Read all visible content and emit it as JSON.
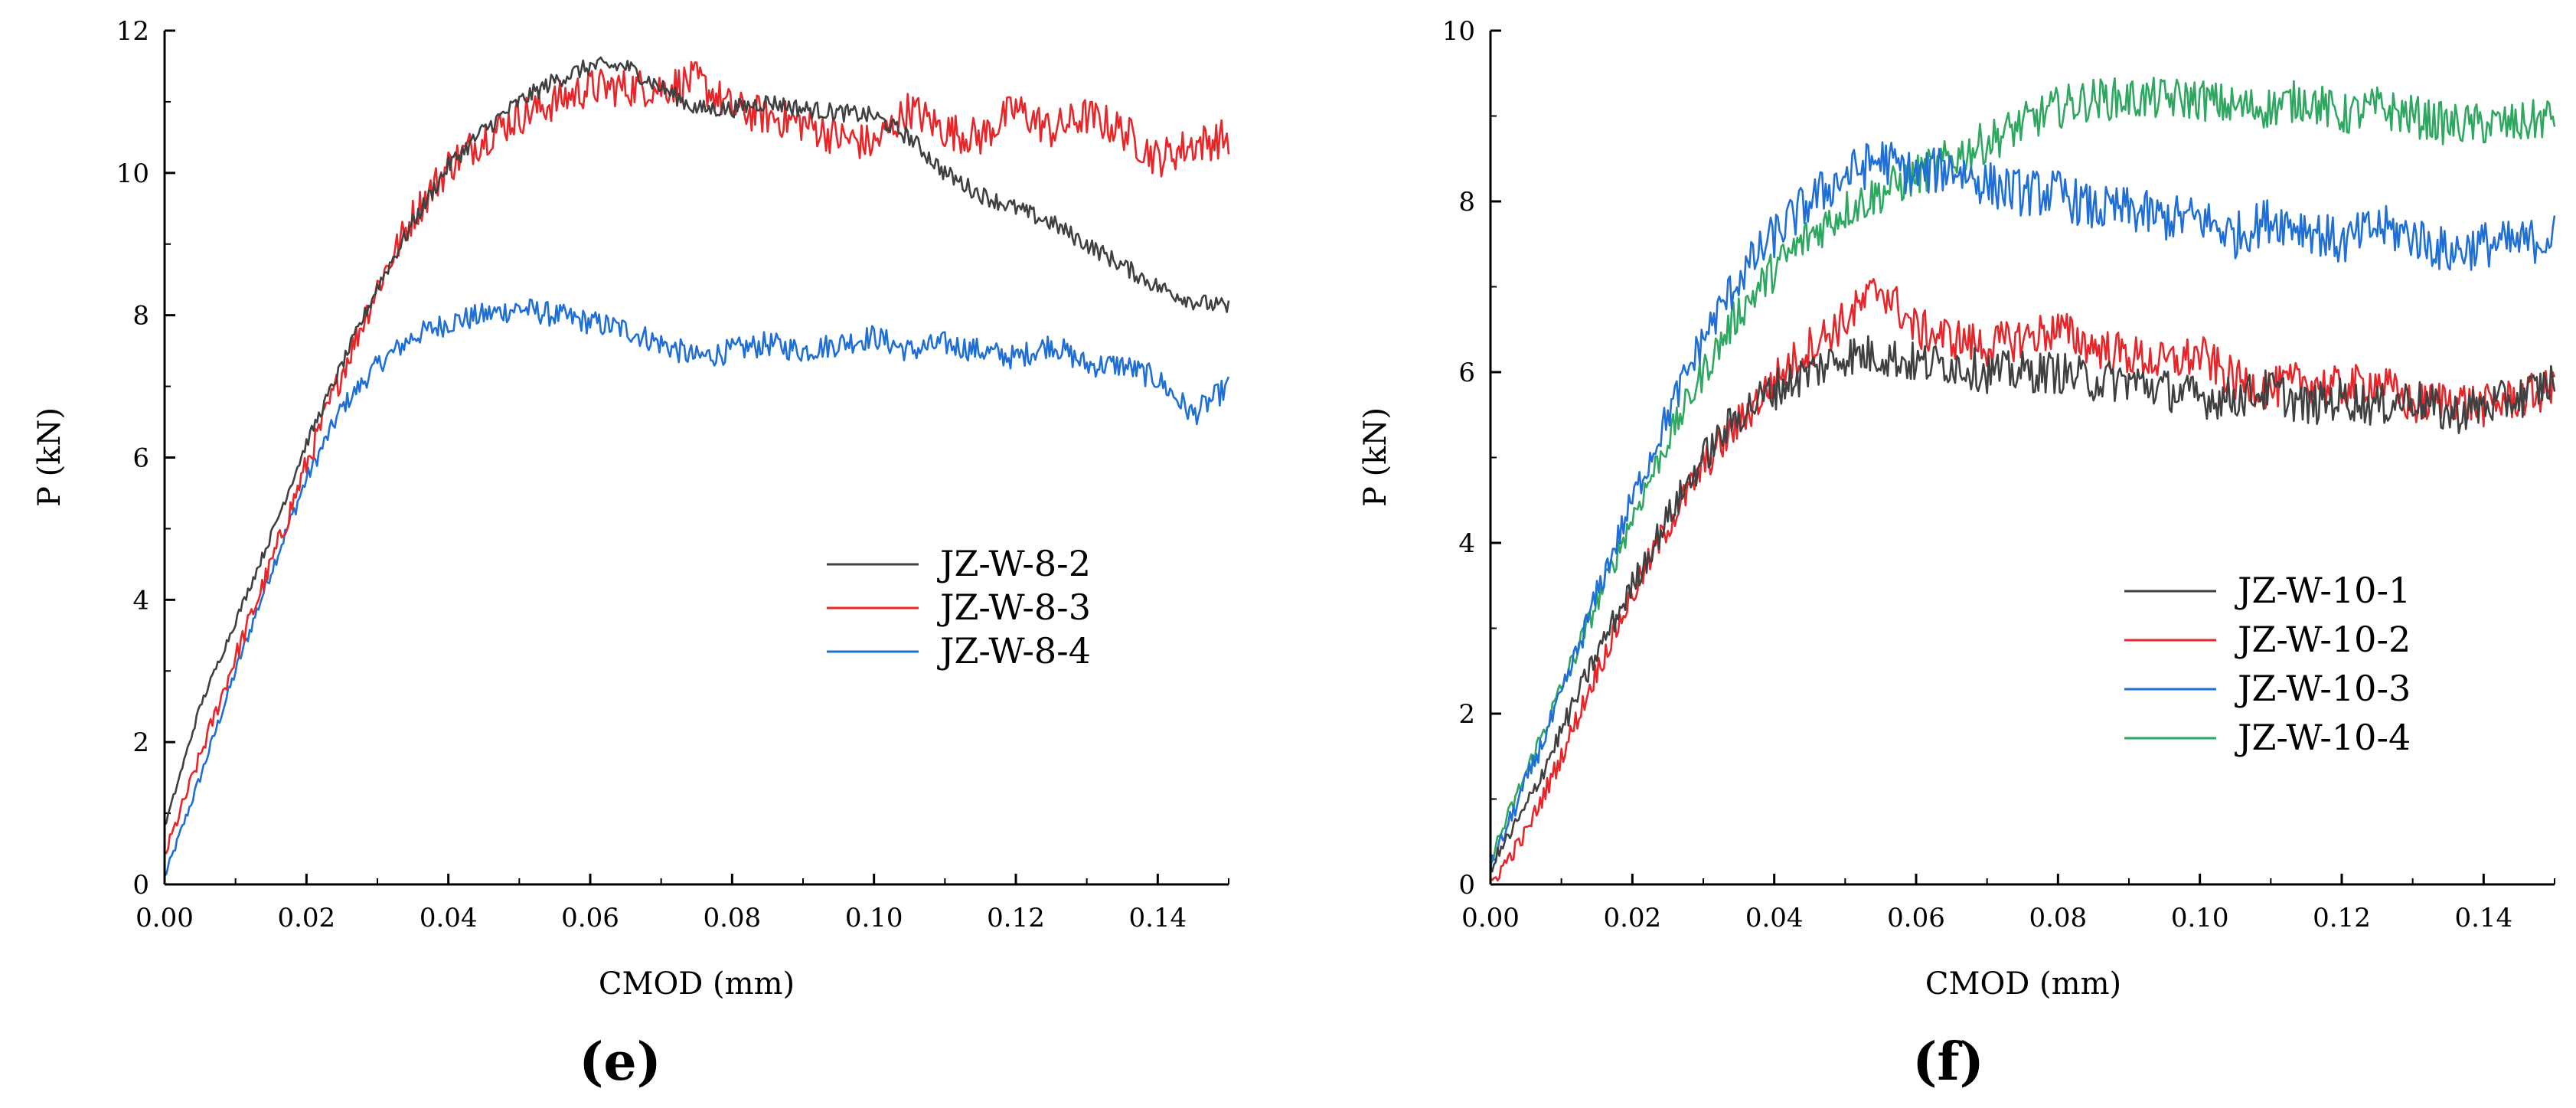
{
  "chart_data": [
    {
      "type": "line",
      "panel": "(e)",
      "title": "",
      "xlabel": "CMOD (mm)",
      "ylabel": "P (kN)",
      "xlim": [
        0,
        0.15
      ],
      "ylim": [
        0,
        12
      ],
      "xticks": [
        "0.00",
        "0.02",
        "0.04",
        "0.06",
        "0.08",
        "0.10",
        "0.12",
        "0.14"
      ],
      "yticks": [
        "0",
        "2",
        "4",
        "6",
        "8",
        "10",
        "12"
      ],
      "grid": false,
      "legend_position": "center-right",
      "series": [
        {
          "name": "JZ-W-8-2",
          "color": "#404040",
          "noise": 0.25,
          "x": [
            0.0,
            0.005,
            0.01,
            0.015,
            0.02,
            0.025,
            0.03,
            0.035,
            0.04,
            0.045,
            0.05,
            0.055,
            0.06,
            0.065,
            0.07,
            0.075,
            0.08,
            0.085,
            0.09,
            0.095,
            0.1,
            0.105,
            0.11,
            0.115,
            0.12,
            0.125,
            0.13,
            0.135,
            0.14,
            0.145,
            0.15
          ],
          "y": [
            0.8,
            2.5,
            3.7,
            4.9,
            6.2,
            7.3,
            8.4,
            9.3,
            10.1,
            10.6,
            11.0,
            11.3,
            11.5,
            11.5,
            11.2,
            10.9,
            10.9,
            11.0,
            10.9,
            10.85,
            10.8,
            10.5,
            10.0,
            9.7,
            9.5,
            9.3,
            9.0,
            8.7,
            8.4,
            8.2,
            8.1
          ]
        },
        {
          "name": "JZ-W-8-3",
          "color": "#e8262a",
          "noise": 0.55,
          "x": [
            0.0,
            0.005,
            0.01,
            0.015,
            0.02,
            0.025,
            0.03,
            0.035,
            0.04,
            0.045,
            0.05,
            0.055,
            0.06,
            0.065,
            0.07,
            0.075,
            0.08,
            0.085,
            0.09,
            0.095,
            0.1,
            0.105,
            0.11,
            0.115,
            0.12,
            0.125,
            0.13,
            0.135,
            0.14,
            0.145,
            0.15
          ],
          "y": [
            0.4,
            1.8,
            3.2,
            4.5,
            5.9,
            7.2,
            8.4,
            9.4,
            10.1,
            10.5,
            10.8,
            11.0,
            11.2,
            11.2,
            11.2,
            11.3,
            10.9,
            10.8,
            10.7,
            10.5,
            10.4,
            10.9,
            10.6,
            10.5,
            10.9,
            10.6,
            10.8,
            10.6,
            10.2,
            10.4,
            10.5
          ]
        },
        {
          "name": "JZ-W-8-4",
          "color": "#1f6fd6",
          "noise": 0.35,
          "x": [
            0.0,
            0.005,
            0.01,
            0.015,
            0.02,
            0.025,
            0.03,
            0.035,
            0.04,
            0.045,
            0.05,
            0.055,
            0.06,
            0.065,
            0.07,
            0.075,
            0.08,
            0.085,
            0.09,
            0.095,
            0.1,
            0.105,
            0.11,
            0.115,
            0.12,
            0.125,
            0.13,
            0.135,
            0.14,
            0.145,
            0.15
          ],
          "y": [
            0.1,
            1.5,
            3.0,
            4.4,
            5.7,
            6.7,
            7.3,
            7.7,
            7.9,
            8.0,
            8.1,
            8.0,
            7.9,
            7.8,
            7.6,
            7.4,
            7.5,
            7.6,
            7.5,
            7.6,
            7.7,
            7.5,
            7.6,
            7.5,
            7.4,
            7.6,
            7.3,
            7.3,
            7.1,
            6.6,
            7.0
          ]
        }
      ]
    },
    {
      "type": "line",
      "panel": "(f)",
      "title": "",
      "xlabel": "CMOD (mm)",
      "ylabel": "P (kN)",
      "xlim": [
        0,
        0.15
      ],
      "ylim": [
        0,
        10
      ],
      "xticks": [
        "0.00",
        "0.02",
        "0.04",
        "0.06",
        "0.08",
        "0.10",
        "0.12",
        "0.14"
      ],
      "yticks": [
        "0",
        "2",
        "4",
        "6",
        "8",
        "10"
      ],
      "grid": false,
      "legend_position": "center-right",
      "series": [
        {
          "name": "JZ-W-10-1",
          "color": "#404040",
          "noise": 0.5,
          "x": [
            0.0,
            0.005,
            0.01,
            0.015,
            0.02,
            0.025,
            0.03,
            0.035,
            0.04,
            0.045,
            0.05,
            0.055,
            0.06,
            0.065,
            0.07,
            0.075,
            0.08,
            0.085,
            0.09,
            0.095,
            0.1,
            0.105,
            0.11,
            0.115,
            0.12,
            0.125,
            0.13,
            0.135,
            0.14,
            0.145,
            0.15
          ],
          "y": [
            0.2,
            0.9,
            1.8,
            2.7,
            3.5,
            4.3,
            5.0,
            5.5,
            5.8,
            6.0,
            6.2,
            6.2,
            6.1,
            6.1,
            6.0,
            6.0,
            6.0,
            5.9,
            5.9,
            5.8,
            5.7,
            5.7,
            5.8,
            5.6,
            5.7,
            5.6,
            5.7,
            5.5,
            5.6,
            5.7,
            5.9
          ]
        },
        {
          "name": "JZ-W-10-2",
          "color": "#e8262a",
          "noise": 0.5,
          "x": [
            0.0,
            0.005,
            0.01,
            0.015,
            0.02,
            0.025,
            0.03,
            0.035,
            0.04,
            0.045,
            0.05,
            0.055,
            0.06,
            0.065,
            0.07,
            0.075,
            0.08,
            0.085,
            0.09,
            0.095,
            0.1,
            0.105,
            0.11,
            0.115,
            0.12,
            0.125,
            0.13,
            0.135,
            0.14,
            0.145,
            0.15
          ],
          "y": [
            0.0,
            0.6,
            1.5,
            2.5,
            3.4,
            4.2,
            4.9,
            5.4,
            5.9,
            6.3,
            6.6,
            7.0,
            6.5,
            6.4,
            6.3,
            6.4,
            6.5,
            6.3,
            6.2,
            6.1,
            6.2,
            5.9,
            5.8,
            5.9,
            5.8,
            5.9,
            5.6,
            5.7,
            5.6,
            5.7,
            5.8
          ]
        },
        {
          "name": "JZ-W-10-3",
          "color": "#1f6fd6",
          "noise": 0.55,
          "x": [
            0.0,
            0.005,
            0.01,
            0.015,
            0.02,
            0.025,
            0.03,
            0.035,
            0.04,
            0.045,
            0.05,
            0.055,
            0.06,
            0.065,
            0.07,
            0.075,
            0.08,
            0.085,
            0.09,
            0.095,
            0.1,
            0.105,
            0.11,
            0.115,
            0.12,
            0.125,
            0.13,
            0.135,
            0.14,
            0.145,
            0.15
          ],
          "y": [
            0.2,
            1.2,
            2.2,
            3.4,
            4.5,
            5.5,
            6.4,
            7.1,
            7.6,
            8.0,
            8.3,
            8.5,
            8.3,
            8.4,
            8.2,
            8.1,
            8.1,
            7.9,
            7.9,
            7.8,
            7.8,
            7.6,
            7.8,
            7.7,
            7.5,
            7.7,
            7.6,
            7.4,
            7.5,
            7.5,
            7.6
          ]
        },
        {
          "name": "JZ-W-10-4",
          "color": "#2ea860",
          "noise": 0.5,
          "x": [
            0.0,
            0.005,
            0.01,
            0.015,
            0.02,
            0.025,
            0.03,
            0.035,
            0.04,
            0.045,
            0.05,
            0.055,
            0.06,
            0.065,
            0.07,
            0.075,
            0.08,
            0.085,
            0.09,
            0.095,
            0.1,
            0.105,
            0.11,
            0.115,
            0.12,
            0.125,
            0.13,
            0.135,
            0.14,
            0.145,
            0.15
          ],
          "y": [
            0.3,
            1.3,
            2.3,
            3.3,
            4.3,
            5.2,
            6.0,
            6.7,
            7.2,
            7.6,
            7.9,
            8.1,
            8.3,
            8.5,
            8.7,
            8.9,
            9.1,
            9.2,
            9.2,
            9.2,
            9.2,
            9.1,
            9.1,
            9.2,
            9.0,
            9.1,
            9.0,
            8.9,
            8.9,
            8.9,
            9.0
          ]
        }
      ]
    }
  ]
}
